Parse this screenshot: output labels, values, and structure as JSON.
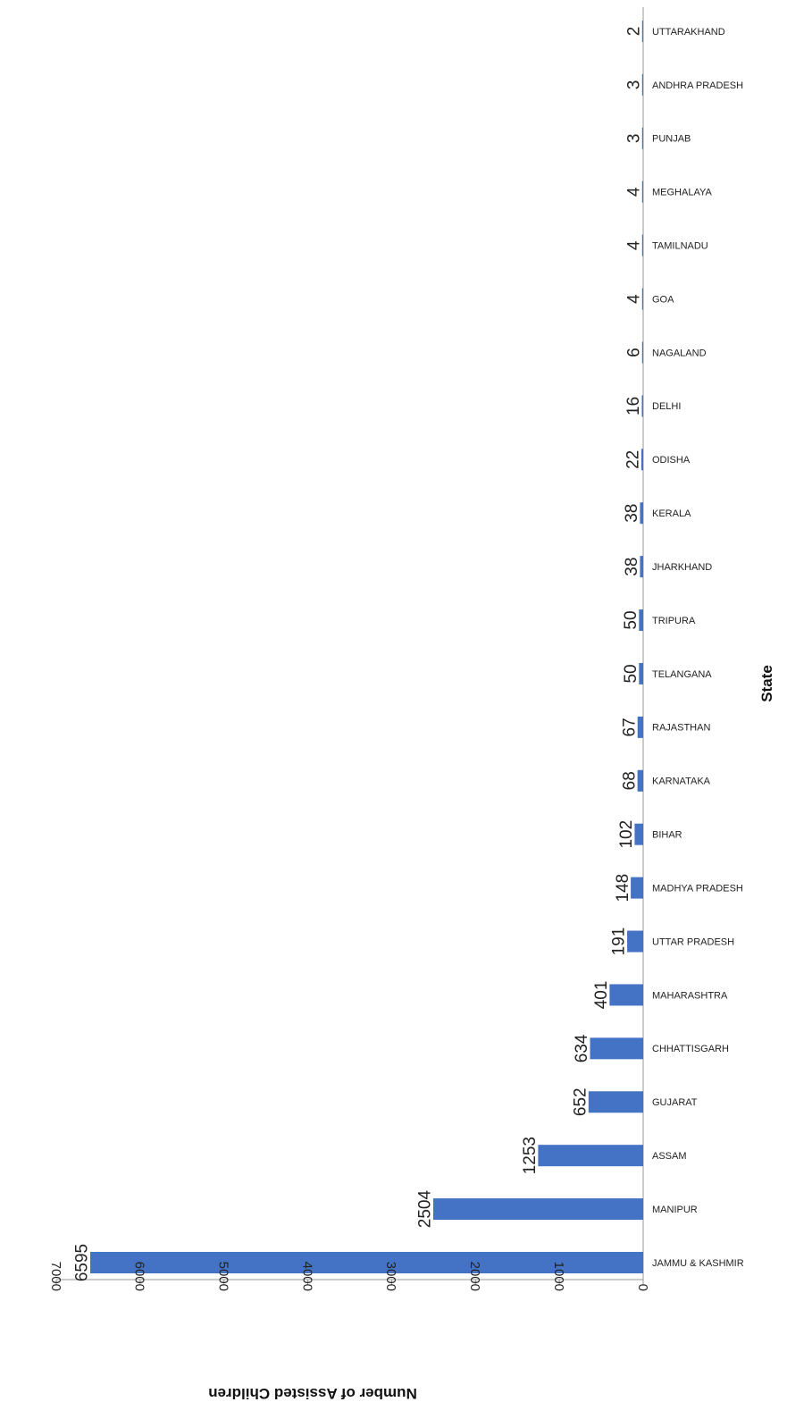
{
  "chart_data": {
    "type": "bar",
    "orientation": "horizontal",
    "categories": [
      "JAMMU & KASHMIR",
      "MANIPUR",
      "ASSAM",
      "GUJARAT",
      "CHHATTISGARH",
      "MAHARASHTRA",
      "UTTAR PRADESH",
      "MADHYA PRADESH",
      "BIHAR",
      "KARNATAKA",
      "RAJASTHAN",
      "TELANGANA",
      "TRIPURA",
      "JHARKHAND",
      "KERALA",
      "ODISHA",
      "DELHI",
      "NAGALAND",
      "GOA",
      "TAMILNADU",
      "MEGHALAYA",
      "PUNJAB",
      "ANDHRA PRADESH",
      "UTTARAKHAND"
    ],
    "values": [
      6595,
      2504,
      1253,
      652,
      634,
      401,
      191,
      148,
      102,
      68,
      67,
      50,
      50,
      38,
      38,
      22,
      16,
      6,
      4,
      4,
      4,
      3,
      3,
      2
    ],
    "value_labels": [
      "6595",
      "2504",
      "1253",
      "652",
      "634",
      "401",
      "191",
      "148",
      "102",
      "68",
      "67",
      "50",
      "50",
      "38",
      "38",
      "22",
      "16",
      "6",
      "4",
      "4",
      "4",
      "3",
      "3",
      "2"
    ],
    "xlabel": "State",
    "ylabel": "Number of Assisted Children",
    "ylim": [
      0,
      7000
    ],
    "ticks": [
      0,
      1000,
      2000,
      3000,
      4000,
      5000,
      6000,
      7000
    ],
    "tick_labels": [
      "0",
      "1000",
      "2000",
      "3000",
      "4000",
      "5000",
      "6000",
      "7000"
    ],
    "bar_color": "#4472C4",
    "grid": false,
    "legend": "none",
    "rotation": "page rotated 90 degrees clockwise"
  }
}
